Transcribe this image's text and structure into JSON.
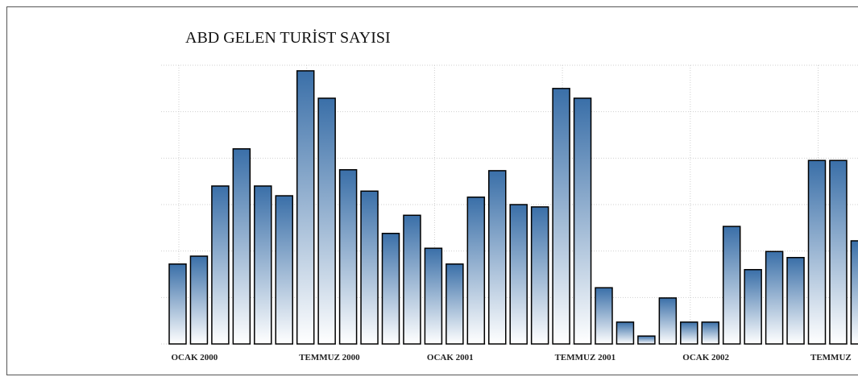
{
  "chart_data": {
    "type": "bar",
    "title": "ABD GELEN TURİST SAYISI",
    "categories": [
      "OCAK 2000",
      null,
      null,
      null,
      null,
      null,
      "TEMMUZ 2000",
      null,
      null,
      null,
      null,
      null,
      "OCAK 2001",
      null,
      null,
      null,
      null,
      null,
      "TEMMUZ 2001",
      null,
      null,
      null,
      null,
      null,
      "OCAK 2002",
      null,
      null,
      null,
      null,
      null,
      "TEMMUZ",
      null,
      null
    ],
    "values": [
      1.72,
      1.89,
      3.4,
      4.2,
      3.4,
      3.19,
      5.88,
      5.29,
      3.75,
      3.29,
      2.38,
      2.77,
      2.06,
      1.72,
      3.16,
      3.73,
      3.0,
      2.95,
      5.5,
      5.29,
      1.21,
      0.47,
      0.17,
      0.99,
      0.47,
      0.47,
      2.53,
      1.6,
      1.99,
      1.86,
      3.95,
      3.95,
      2.22
    ],
    "color": "#3a6fa8",
    "ylim": [
      0,
      6
    ],
    "yticks": [
      0,
      1,
      2,
      3,
      4,
      5,
      6
    ],
    "grid": true
  }
}
